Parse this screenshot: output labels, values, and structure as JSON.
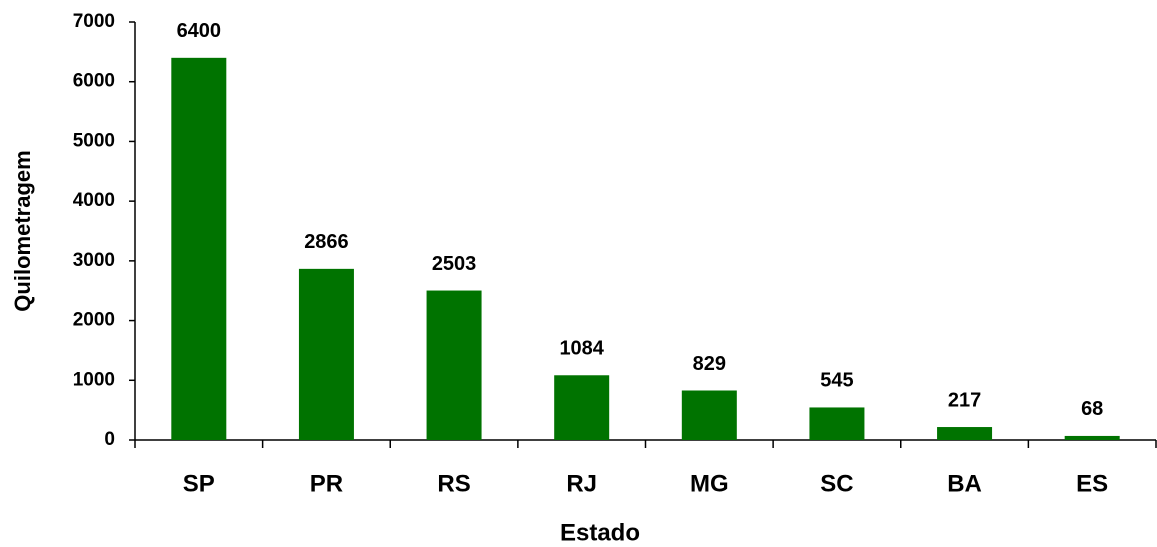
{
  "chart_data": {
    "type": "bar",
    "x_label": "Estado",
    "y_label": "Quilometragem",
    "categories": [
      "SP",
      "PR",
      "RS",
      "RJ",
      "MG",
      "SC",
      "BA",
      "ES"
    ],
    "values": [
      6400,
      2866,
      2503,
      1084,
      829,
      545,
      217,
      68
    ],
    "color": "#007300",
    "ylim": [
      0,
      7000
    ],
    "yticks": [
      0,
      1000,
      2000,
      3000,
      4000,
      5000,
      6000,
      7000
    ],
    "grid": false
  }
}
